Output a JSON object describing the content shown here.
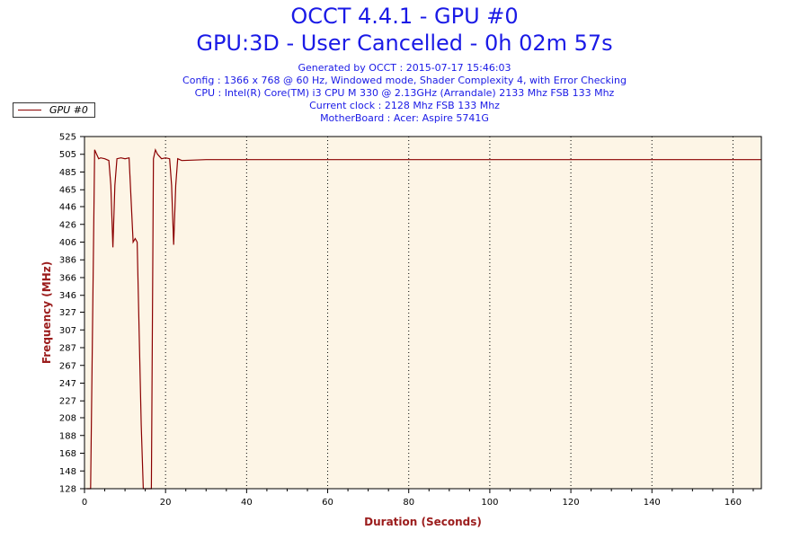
{
  "header": {
    "title": "OCCT 4.4.1 - GPU #0",
    "subtitle": "GPU:3D - User Cancelled - 0h 02m 57s",
    "info_lines": [
      "Generated by OCCT : 2015-07-17 15:46:03",
      "Config : 1366 x 768 @ 60 Hz, Windowed mode, Shader Complexity 4, with Error Checking",
      "CPU : Intel(R) Core(TM) i3 CPU M 330 @ 2.13GHz (Arrandale) 2133 Mhz FSB 133 Mhz",
      "Current clock : 2128 Mhz FSB 133 Mhz",
      "MotherBoard : Acer: Aspire 5741G"
    ]
  },
  "colors": {
    "title": "#1a1ae6",
    "line": "#8b0000",
    "axis_title": "#9b1c1c",
    "plot_bg": "#fdf5e6"
  },
  "chart_data": {
    "type": "line",
    "xlabel": "Duration (Seconds)",
    "ylabel": "Frequency (MHz)",
    "xlim": [
      0,
      167
    ],
    "ylim": [
      128,
      525
    ],
    "xticks": [
      0,
      20,
      40,
      60,
      80,
      100,
      120,
      140,
      160
    ],
    "yticks": [
      128,
      148,
      168,
      188,
      208,
      227,
      247,
      267,
      287,
      307,
      327,
      346,
      366,
      386,
      406,
      426,
      446,
      465,
      485,
      505,
      525
    ],
    "grid": true,
    "legend_position": "top-left",
    "series": [
      {
        "name": "GPU #0",
        "color": "#8b0000",
        "x": [
          0.5,
          1.5,
          2.5,
          3,
          3.5,
          4,
          5,
          6,
          6.5,
          7,
          7.5,
          8,
          9,
          10,
          11,
          12,
          12.5,
          13,
          13.5,
          14,
          14.5,
          15,
          15.5,
          16,
          16.5,
          17,
          17.5,
          18,
          19,
          20,
          21,
          21.5,
          22,
          22.5,
          23,
          24,
          30,
          167
        ],
        "y": [
          128,
          128,
          510,
          505,
          500,
          501,
          500,
          498,
          470,
          400,
          470,
          500,
          501,
          500,
          501,
          406,
          410,
          406,
          300,
          200,
          128,
          128,
          128,
          128,
          128,
          500,
          510,
          505,
          500,
          501,
          500,
          470,
          403,
          470,
          500,
          498,
          499,
          499
        ]
      }
    ]
  }
}
